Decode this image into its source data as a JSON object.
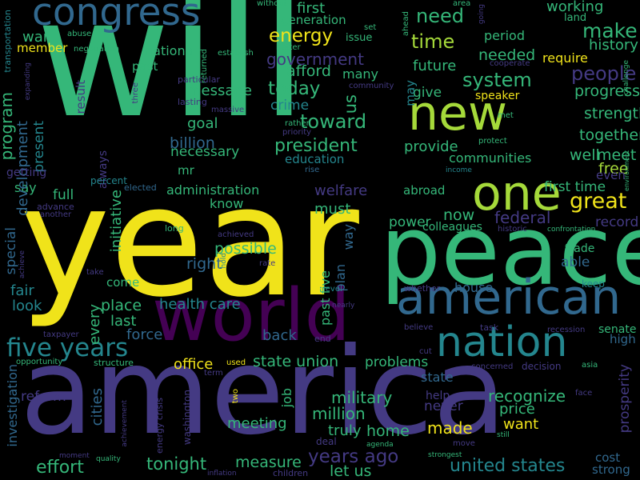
{
  "palette": {
    "background": "#000000",
    "yellow": "#f0e31a",
    "lime": "#a5d93a",
    "green": "#35b779",
    "teal": "#24868e",
    "blue": "#31688e",
    "indigo": "#443a83",
    "purple": "#440154"
  },
  "words": {
    "will": "will",
    "year": "year",
    "america": "america",
    "peace": "peace",
    "world": "world",
    "american": "american",
    "nation": "nation",
    "new": "new",
    "one": "one",
    "congress": "congress",
    "five_years": "five years",
    "great": "great",
    "time": "time",
    "need": "need",
    "make": "make",
    "energy": "energy",
    "people": "people",
    "system": "system",
    "today": "today",
    "toward": "toward",
    "president": "president",
    "government": "government",
    "years_ago": "years ago",
    "united_states": "united states",
    "recognize": "recognize",
    "military": "military",
    "million": "million",
    "program": "program",
    "working": "working",
    "history": "history",
    "progress": "progress",
    "strength": "strength",
    "together": "together",
    "well": "well",
    "meet": "meet",
    "free": "free",
    "first_time": "first time",
    "first": "first",
    "federal": "federal",
    "welfare": "welfare",
    "administration": "administration",
    "health_care": "health care",
    "effort": "effort",
    "tonight": "tonight",
    "measure": "measure",
    "let_us": "let us",
    "home": "home",
    "truly": "truly",
    "made": "made",
    "want": "want",
    "price": "price",
    "state_union": "state union",
    "office": "office",
    "problems": "problems",
    "back": "back",
    "force": "force",
    "last": "last",
    "place": "place",
    "right": "right",
    "possible": "possible",
    "must": "must",
    "now": "now",
    "power": "power",
    "plan": "plan",
    "way": "way",
    "past_five": "past five",
    "colleagues": "colleagues",
    "future": "future",
    "provide": "provide",
    "communities": "communities",
    "education": "education",
    "billion": "billion",
    "goal": "goal",
    "message": "message",
    "crime": "crime",
    "afford": "afford",
    "many": "many",
    "give": "give",
    "needed": "needed",
    "period": "period",
    "require": "require",
    "land": "land",
    "war": "war",
    "member": "member",
    "national": "national",
    "generation": "generation",
    "issue": "issue",
    "full": "full",
    "say": "say",
    "know": "know",
    "initiative": "initiative",
    "every": "every",
    "come": "come",
    "look": "look",
    "fair": "fair",
    "special": "special",
    "development": "development",
    "present": "present",
    "necessary": "necessary",
    "mr": "mr",
    "house": "house",
    "senate": "senate",
    "high": "high",
    "record": "record",
    "trade": "trade",
    "able": "able",
    "keep": "keep",
    "cost": "cost",
    "strong": "strong",
    "prosperity": "prosperity",
    "reform": "reform",
    "cities": "cities",
    "investigation": "investigation",
    "job": "job",
    "meeting": "meeting",
    "state": "state",
    "help": "help",
    "never": "never",
    "abroad": "abroad",
    "even": "even",
    "speaker": "speaker",
    "result": "result",
    "always": "always",
    "getting": "getting",
    "us": "us",
    "may": "may",
    "past": "past",
    "transportation": "transportation",
    "abuse": "abuse",
    "negotiation": "negotiation",
    "without": "without",
    "returned": "returned",
    "establish": "establish",
    "better": "better",
    "set": "set",
    "ahead": "ahead",
    "area": "area",
    "going": "going",
    "cooperate": "cooperate",
    "community": "community",
    "challenge": "challenge",
    "particular": "particular",
    "lasting": "lasting",
    "massive": "massive",
    "expanding": "expanding",
    "three": "three",
    "rather": "rather",
    "priority": "priority",
    "met": "met",
    "protect": "protect",
    "income": "income",
    "environment": "environment",
    "rise": "rise",
    "percent": "percent",
    "elected": "elected",
    "advance": "advance",
    "another": "another",
    "achieved": "achieved",
    "long": "long",
    "historic": "historic",
    "confrontation": "confrontation",
    "hold": "hold",
    "take": "take",
    "achieve": "achieve",
    "rate": "rate",
    "level": "level",
    "whether": "whether",
    "nearly": "nearly",
    "task": "task",
    "recession": "recession",
    "believe": "believe",
    "end": "end",
    "taxpayer": "taxpayer",
    "cut": "cut",
    "decision": "decision",
    "asia": "asia",
    "concerned": "concerned",
    "opportunity": "opportunity",
    "structure": "structure",
    "term": "term",
    "used": "used",
    "face": "face",
    "achievement": "achievement",
    "energy_crisis": "energy crisis",
    "washington": "washington",
    "two": "two",
    "still": "still",
    "agenda": "agenda",
    "move": "move",
    "deal": "deal",
    "strongest": "strongest",
    "moment": "moment",
    "quality": "quality",
    "inflation": "inflation",
    "children": "children"
  }
}
